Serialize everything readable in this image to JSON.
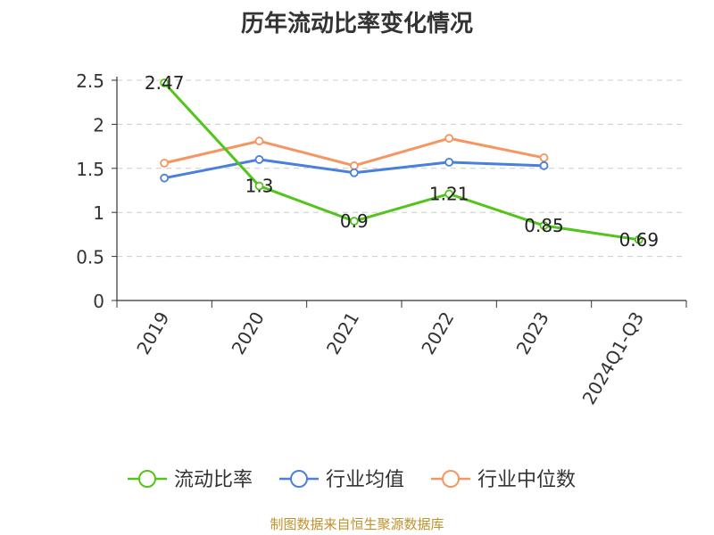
{
  "chart_data": {
    "type": "line",
    "title": "历年流动比率变化情况",
    "categories": [
      "2019",
      "2020",
      "2021",
      "2022",
      "2023",
      "2024Q1-Q3"
    ],
    "series": [
      {
        "name": "流动比率",
        "color": "#52c41a",
        "values": [
          2.47,
          1.3,
          0.9,
          1.21,
          0.85,
          0.69
        ],
        "data_labels": [
          "2.47",
          "1.3",
          "0.9",
          "1.21",
          "0.85",
          "0.69"
        ]
      },
      {
        "name": "行业均值",
        "color": "#4a7fdb",
        "values": [
          1.39,
          1.6,
          1.45,
          1.57,
          1.53,
          null
        ]
      },
      {
        "name": "行业中位数",
        "color": "#f59660",
        "values": [
          1.56,
          1.81,
          1.53,
          1.84,
          1.62,
          null
        ]
      }
    ],
    "y_ticks": [
      "0",
      "0.5",
      "1",
      "1.5",
      "2",
      "2.5"
    ],
    "ylim": [
      0,
      2.5
    ],
    "grid": true,
    "legend_position": "bottom"
  },
  "source_text": "制图数据来自恒生聚源数据库"
}
